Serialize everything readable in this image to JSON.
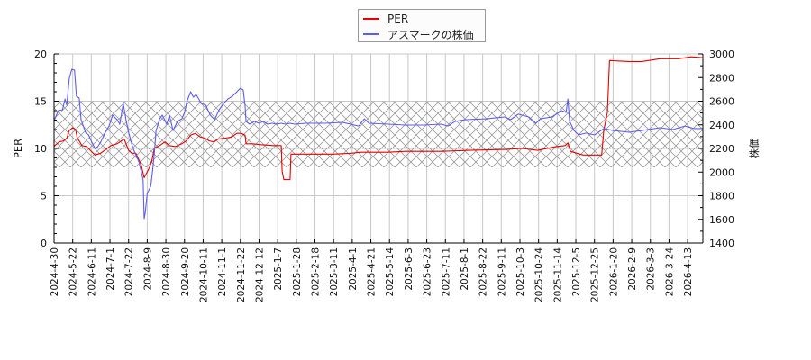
{
  "legend": {
    "items": [
      {
        "label": "PER",
        "color": "#e60000"
      },
      {
        "label": "アスマークの株価",
        "color": "#5c5cf0"
      }
    ]
  },
  "axes": {
    "left_title": "PER",
    "right_title": "株価"
  },
  "chart_data": {
    "type": "line",
    "title": "",
    "xlabel": "",
    "ylabel": "PER",
    "y2label": "株価",
    "ylim": [
      0,
      20
    ],
    "y2lim": [
      1400,
      3000
    ],
    "grid": true,
    "legend_position": "top-center",
    "y_ticks": [
      0,
      5,
      10,
      15,
      20
    ],
    "y2_ticks": [
      1400,
      1600,
      1800,
      2000,
      2200,
      2400,
      2600,
      2800,
      3000
    ],
    "x_ticks": [
      "2024-4-30",
      "2024-5-22",
      "2024-6-11",
      "2024-7-1",
      "2024-7-22",
      "2024-8-9",
      "2024-8-30",
      "2024-9-20",
      "2024-10-11",
      "2024-11-1",
      "2024-11-22",
      "2024-12-12",
      "2025-1-7",
      "2025-1-28",
      "2025-2-18",
      "2025-3-11",
      "2025-4-1",
      "2025-4-21",
      "2025-5-14",
      "2025-6-3",
      "2025-6-23",
      "2025-7-11",
      "2025-8-1",
      "2025-8-22",
      "2025-9-11",
      "2025-10-3",
      "2025-10-24",
      "2025-11-14",
      "2025-12-5",
      "2025-12-25",
      "2026-1-20",
      "2026-2-9",
      "2026-3-3",
      "2026-3-24",
      "2026-4-13"
    ],
    "shaded_band": {
      "axis": "PER",
      "from": 8,
      "to": 15,
      "style": "crosshatch",
      "color": "#9a9a9a"
    },
    "series": [
      {
        "name": "PER",
        "axis": "left",
        "color": "#e60000",
        "points": [
          [
            "2024-04-30",
            10.2
          ],
          [
            "2024-05-01",
            10.3
          ],
          [
            "2024-05-06",
            10.7
          ],
          [
            "2024-05-11",
            10.8
          ],
          [
            "2024-05-15",
            11.1
          ],
          [
            "2024-05-18",
            11.9
          ],
          [
            "2024-05-22",
            12.2
          ],
          [
            "2024-05-25",
            12.0
          ],
          [
            "2024-05-27",
            11.1
          ],
          [
            "2024-05-29",
            10.8
          ],
          [
            "2024-06-01",
            10.3
          ],
          [
            "2024-06-06",
            10.2
          ],
          [
            "2024-06-11",
            9.7
          ],
          [
            "2024-06-15",
            9.3
          ],
          [
            "2024-06-21",
            9.5
          ],
          [
            "2024-06-28",
            10.0
          ],
          [
            "2024-07-02",
            10.3
          ],
          [
            "2024-07-09",
            10.5
          ],
          [
            "2024-07-17",
            11.0
          ],
          [
            "2024-07-22",
            9.8
          ],
          [
            "2024-07-25",
            9.5
          ],
          [
            "2024-07-29",
            9.5
          ],
          [
            "2024-08-03",
            8.3
          ],
          [
            "2024-08-06",
            6.9
          ],
          [
            "2024-08-08",
            7.3
          ],
          [
            "2024-08-11",
            7.9
          ],
          [
            "2024-08-14",
            8.6
          ],
          [
            "2024-08-17",
            10.0
          ],
          [
            "2024-08-23",
            10.3
          ],
          [
            "2024-08-29",
            10.7
          ],
          [
            "2024-09-03",
            10.3
          ],
          [
            "2024-09-10",
            10.2
          ],
          [
            "2024-09-17",
            10.5
          ],
          [
            "2024-09-22",
            10.8
          ],
          [
            "2024-09-27",
            11.4
          ],
          [
            "2024-10-02",
            11.6
          ],
          [
            "2024-10-08",
            11.2
          ],
          [
            "2024-10-13",
            11.1
          ],
          [
            "2024-10-18",
            10.8
          ],
          [
            "2024-10-23",
            10.7
          ],
          [
            "2024-10-28",
            11.0
          ],
          [
            "2024-11-05",
            11.1
          ],
          [
            "2024-11-12",
            11.2
          ],
          [
            "2024-11-18",
            11.6
          ],
          [
            "2024-11-23",
            11.6
          ],
          [
            "2024-11-27",
            11.4
          ],
          [
            "2024-11-28",
            10.5
          ],
          [
            "2024-12-05",
            10.5
          ],
          [
            "2024-12-15",
            10.4
          ],
          [
            "2025-01-01",
            10.3
          ],
          [
            "2025-01-11",
            10.3
          ],
          [
            "2025-01-12",
            7.6
          ],
          [
            "2025-01-14",
            6.7
          ],
          [
            "2025-01-21",
            6.7
          ],
          [
            "2025-01-22",
            9.4
          ],
          [
            "2025-02-08",
            9.4
          ],
          [
            "2025-03-11",
            9.4
          ],
          [
            "2025-03-31",
            9.5
          ],
          [
            "2025-04-10",
            9.6
          ],
          [
            "2025-05-12",
            9.6
          ],
          [
            "2025-05-31",
            9.7
          ],
          [
            "2025-07-07",
            9.7
          ],
          [
            "2025-08-06",
            9.8
          ],
          [
            "2025-09-15",
            9.9
          ],
          [
            "2025-10-06",
            10.0
          ],
          [
            "2025-10-23",
            9.8
          ],
          [
            "2025-11-13",
            10.2
          ],
          [
            "2025-11-23",
            10.3
          ],
          [
            "2025-11-26",
            10.6
          ],
          [
            "2025-11-29",
            9.7
          ],
          [
            "2025-12-06",
            9.5
          ],
          [
            "2025-12-13",
            9.3
          ],
          [
            "2026-01-04",
            9.3
          ],
          [
            "2026-01-07",
            11.9
          ],
          [
            "2026-01-12",
            13.8
          ],
          [
            "2026-01-15",
            19.3
          ],
          [
            "2026-02-06",
            19.2
          ],
          [
            "2026-02-21",
            19.2
          ],
          [
            "2026-03-14",
            19.5
          ],
          [
            "2026-04-03",
            19.5
          ],
          [
            "2026-04-17",
            19.7
          ],
          [
            "2026-04-30",
            19.6
          ]
        ]
      },
      {
        "name": "アスマークの株価",
        "axis": "right",
        "color": "#5c5cf0",
        "points": [
          [
            "2024-04-30",
            2436
          ],
          [
            "2024-05-01",
            2451
          ],
          [
            "2024-05-05",
            2520
          ],
          [
            "2024-05-10",
            2528
          ],
          [
            "2024-05-13",
            2619
          ],
          [
            "2024-05-15",
            2566
          ],
          [
            "2024-05-18",
            2794
          ],
          [
            "2024-05-21",
            2870
          ],
          [
            "2024-05-24",
            2863
          ],
          [
            "2024-05-26",
            2642
          ],
          [
            "2024-05-29",
            2627
          ],
          [
            "2024-05-31",
            2444
          ],
          [
            "2024-06-05",
            2330
          ],
          [
            "2024-06-08",
            2314
          ],
          [
            "2024-06-11",
            2261
          ],
          [
            "2024-06-15",
            2200
          ],
          [
            "2024-06-18",
            2215
          ],
          [
            "2024-06-21",
            2253
          ],
          [
            "2024-06-26",
            2337
          ],
          [
            "2024-06-30",
            2390
          ],
          [
            "2024-07-04",
            2482
          ],
          [
            "2024-07-09",
            2444
          ],
          [
            "2024-07-12",
            2406
          ],
          [
            "2024-07-16",
            2581
          ],
          [
            "2024-07-19",
            2444
          ],
          [
            "2024-07-22",
            2337
          ],
          [
            "2024-07-25",
            2238
          ],
          [
            "2024-07-27",
            2185
          ],
          [
            "2024-08-01",
            2086
          ],
          [
            "2024-08-05",
            1933
          ],
          [
            "2024-08-06",
            1606
          ],
          [
            "2024-08-07",
            1651
          ],
          [
            "2024-08-09",
            1819
          ],
          [
            "2024-08-13",
            1880
          ],
          [
            "2024-08-15",
            2010
          ],
          [
            "2024-08-17",
            2162
          ],
          [
            "2024-08-19",
            2352
          ],
          [
            "2024-08-23",
            2451
          ],
          [
            "2024-08-26",
            2482
          ],
          [
            "2024-08-31",
            2406
          ],
          [
            "2024-09-03",
            2482
          ],
          [
            "2024-09-07",
            2352
          ],
          [
            "2024-09-12",
            2429
          ],
          [
            "2024-09-17",
            2451
          ],
          [
            "2024-09-20",
            2505
          ],
          [
            "2024-09-23",
            2604
          ],
          [
            "2024-09-27",
            2680
          ],
          [
            "2024-09-30",
            2634
          ],
          [
            "2024-10-03",
            2657
          ],
          [
            "2024-10-09",
            2581
          ],
          [
            "2024-10-14",
            2566
          ],
          [
            "2024-10-19",
            2482
          ],
          [
            "2024-10-24",
            2444
          ],
          [
            "2024-10-29",
            2528
          ],
          [
            "2024-11-03",
            2581
          ],
          [
            "2024-11-08",
            2619
          ],
          [
            "2024-11-13",
            2642
          ],
          [
            "2024-11-18",
            2680
          ],
          [
            "2024-11-22",
            2710
          ],
          [
            "2024-11-25",
            2695
          ],
          [
            "2024-11-27",
            2558
          ],
          [
            "2024-11-28",
            2429
          ],
          [
            "2024-12-02",
            2406
          ],
          [
            "2024-12-07",
            2429
          ],
          [
            "2024-12-12",
            2413
          ],
          [
            "2024-12-18",
            2429
          ],
          [
            "2024-12-24",
            2406
          ],
          [
            "2024-12-30",
            2413
          ],
          [
            "2025-01-06",
            2406
          ],
          [
            "2025-01-11",
            2413
          ],
          [
            "2025-01-16",
            2406
          ],
          [
            "2025-01-21",
            2413
          ],
          [
            "2025-01-26",
            2406
          ],
          [
            "2025-02-08",
            2413
          ],
          [
            "2025-03-01",
            2413
          ],
          [
            "2025-03-21",
            2421
          ],
          [
            "2025-04-08",
            2390
          ],
          [
            "2025-04-14",
            2451
          ],
          [
            "2025-04-19",
            2413
          ],
          [
            "2025-05-12",
            2406
          ],
          [
            "2025-05-31",
            2398
          ],
          [
            "2025-06-19",
            2398
          ],
          [
            "2025-07-07",
            2406
          ],
          [
            "2025-07-14",
            2390
          ],
          [
            "2025-07-22",
            2429
          ],
          [
            "2025-08-03",
            2444
          ],
          [
            "2025-08-26",
            2451
          ],
          [
            "2025-09-15",
            2467
          ],
          [
            "2025-09-22",
            2444
          ],
          [
            "2025-10-01",
            2490
          ],
          [
            "2025-10-13",
            2467
          ],
          [
            "2025-10-21",
            2413
          ],
          [
            "2025-10-26",
            2451
          ],
          [
            "2025-11-08",
            2467
          ],
          [
            "2025-11-19",
            2520
          ],
          [
            "2025-11-24",
            2505
          ],
          [
            "2025-11-26",
            2619
          ],
          [
            "2025-11-28",
            2429
          ],
          [
            "2025-12-03",
            2352
          ],
          [
            "2025-12-08",
            2314
          ],
          [
            "2025-12-16",
            2330
          ],
          [
            "2025-12-25",
            2314
          ],
          [
            "2026-01-07",
            2368
          ],
          [
            "2026-01-20",
            2352
          ],
          [
            "2026-02-06",
            2337
          ],
          [
            "2026-02-21",
            2352
          ],
          [
            "2026-03-14",
            2375
          ],
          [
            "2026-03-28",
            2360
          ],
          [
            "2026-04-10",
            2390
          ],
          [
            "2026-04-20",
            2368
          ],
          [
            "2026-04-30",
            2368
          ]
        ]
      }
    ]
  }
}
